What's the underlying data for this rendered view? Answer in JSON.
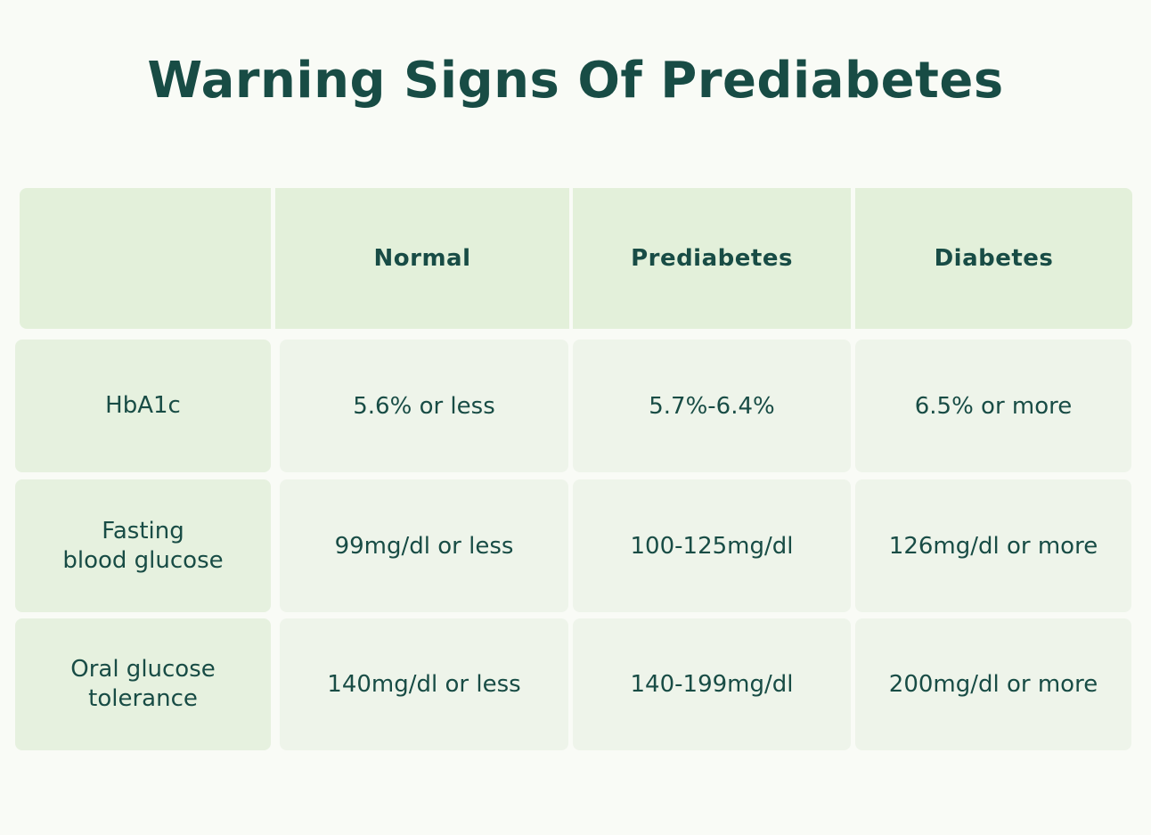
{
  "title": "Warning Signs Of Prediabetes",
  "table": {
    "columns": [
      "",
      "Normal",
      "Prediabetes",
      "Diabetes"
    ],
    "rows": [
      {
        "label": "HbA1c",
        "values": [
          "5.6% or less",
          "5.7%-6.4%",
          "6.5% or more"
        ]
      },
      {
        "label": "Fasting\nblood glucose",
        "values": [
          "99mg/dl or less",
          "100-125mg/dl",
          "126mg/dl or more"
        ]
      },
      {
        "label": "Oral glucose\ntolerance",
        "values": [
          "140mg/dl or less",
          "140-199mg/dl",
          "200mg/dl or more"
        ]
      }
    ]
  },
  "colors": {
    "text": "#184c45",
    "header_bg": "#e3f0da",
    "label_bg": "#e6f1df",
    "cell_bg": "#eef4ea",
    "page_bg": "#f9fbf6"
  }
}
